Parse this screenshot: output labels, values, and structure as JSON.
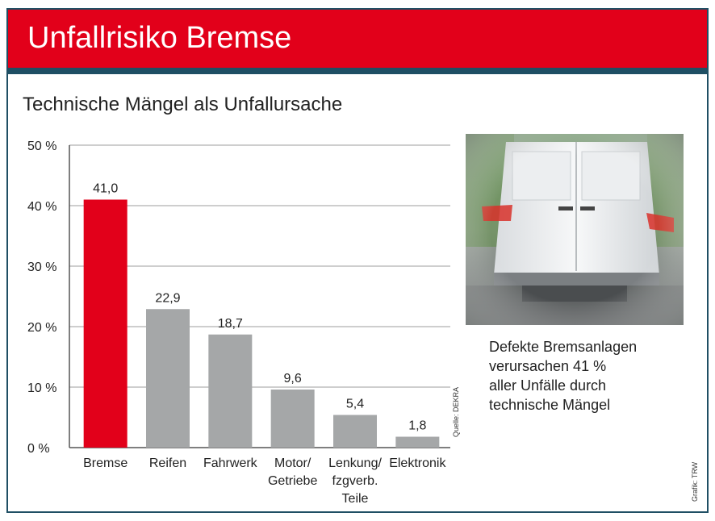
{
  "header": {
    "title": "Unfallrisiko Bremse"
  },
  "subtitle": "Technische Mängel als Unfallursache",
  "chart_data": {
    "type": "bar",
    "categories": [
      "Bremse",
      "Reifen",
      "Fahrwerk",
      "Motor/\nGetriebe",
      "Lenkung/\nfzgverb.\nTeile",
      "Elektronik"
    ],
    "values": [
      41.0,
      22.9,
      18.7,
      9.6,
      5.4,
      1.8
    ],
    "value_labels": [
      "41,0",
      "22,9",
      "18,7",
      "9,6",
      "5,4",
      "1,8"
    ],
    "yticks": [
      "0 %",
      "10 %",
      "20 %",
      "30 %",
      "40 %",
      "50 %"
    ],
    "ylim": [
      0,
      50
    ],
    "grid": true,
    "colors": {
      "highlight": "#e2001a",
      "default": "#a5a7a8"
    },
    "highlight_index": 0
  },
  "caption": [
    "Defekte Bremsanlagen",
    "verursachen 41 %",
    "aller Unfälle durch",
    "technische Mängel"
  ],
  "source_label": "Quelle: DEKRA",
  "credit_label": "Grafik: TRW"
}
